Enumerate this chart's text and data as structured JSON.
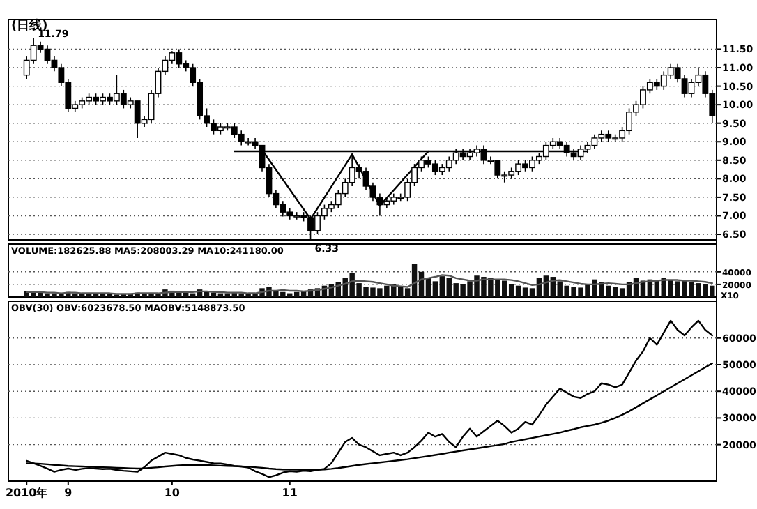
{
  "chart_data": [
    {
      "type": "candlestick",
      "title": "(日线)",
      "color": "#000000",
      "categories": [
        null,
        null,
        null,
        null,
        null,
        null,
        null,
        null,
        null,
        null,
        null,
        null,
        null,
        null,
        null,
        null,
        null,
        null,
        null,
        null,
        null,
        null,
        null,
        null,
        null,
        null,
        null,
        null,
        null,
        null,
        null,
        null,
        null,
        null,
        null,
        null,
        null,
        null,
        null,
        null,
        null,
        null,
        null,
        null,
        null,
        null,
        null,
        null,
        null,
        null,
        null,
        null,
        null,
        null,
        null,
        null,
        null,
        null,
        null,
        null,
        null,
        null,
        null,
        null,
        null,
        null,
        null,
        null,
        null,
        null,
        null,
        null,
        null,
        null,
        null,
        null,
        null,
        null,
        null,
        null,
        null,
        null,
        null,
        null,
        null,
        null,
        null,
        null,
        null,
        null,
        null,
        null,
        null,
        null,
        null,
        null,
        null,
        null,
        null,
        null
      ],
      "ohlc": [
        [
          10.8,
          11.3,
          10.7,
          11.2
        ],
        [
          11.2,
          11.79,
          11.1,
          11.6
        ],
        [
          11.6,
          11.7,
          11.4,
          11.5
        ],
        [
          11.5,
          11.6,
          11.1,
          11.2
        ],
        [
          11.2,
          11.3,
          10.9,
          11.0
        ],
        [
          11.0,
          11.1,
          10.5,
          10.6
        ],
        [
          10.6,
          10.7,
          9.8,
          9.9
        ],
        [
          9.9,
          10.1,
          9.8,
          10.0
        ],
        [
          10.0,
          10.2,
          9.9,
          10.1
        ],
        [
          10.1,
          10.3,
          10.0,
          10.2
        ],
        [
          10.2,
          10.3,
          10.0,
          10.1
        ],
        [
          10.1,
          10.3,
          10.0,
          10.2
        ],
        [
          10.2,
          10.3,
          10.0,
          10.1
        ],
        [
          10.1,
          10.8,
          10.0,
          10.3
        ],
        [
          10.3,
          10.4,
          9.9,
          10.0
        ],
        [
          10.0,
          10.2,
          9.9,
          10.1
        ],
        [
          10.1,
          10.1,
          9.1,
          9.5
        ],
        [
          9.5,
          9.7,
          9.4,
          9.6
        ],
        [
          9.6,
          10.4,
          9.5,
          10.3
        ],
        [
          10.3,
          11.0,
          10.2,
          10.9
        ],
        [
          10.9,
          11.3,
          10.8,
          11.2
        ],
        [
          11.2,
          11.45,
          11.1,
          11.4
        ],
        [
          11.4,
          11.5,
          11.0,
          11.1
        ],
        [
          11.1,
          11.2,
          10.9,
          11.0
        ],
        [
          11.0,
          11.1,
          10.5,
          10.6
        ],
        [
          10.6,
          10.7,
          9.6,
          9.7
        ],
        [
          9.7,
          9.9,
          9.4,
          9.5
        ],
        [
          9.5,
          9.6,
          9.2,
          9.3
        ],
        [
          9.3,
          9.5,
          9.2,
          9.4
        ],
        [
          9.4,
          9.5,
          9.3,
          9.4
        ],
        [
          9.4,
          9.5,
          9.1,
          9.2
        ],
        [
          9.2,
          9.3,
          8.9,
          9.0
        ],
        [
          9.0,
          9.1,
          8.9,
          9.0
        ],
        [
          9.0,
          9.1,
          8.8,
          8.9
        ],
        [
          8.9,
          8.9,
          8.2,
          8.3
        ],
        [
          8.3,
          8.4,
          7.5,
          7.6
        ],
        [
          7.6,
          7.7,
          7.2,
          7.3
        ],
        [
          7.3,
          7.4,
          6.98,
          7.1
        ],
        [
          7.1,
          7.2,
          6.9,
          7.0
        ],
        [
          7.0,
          7.1,
          6.9,
          7.0
        ],
        [
          7.0,
          7.1,
          6.85,
          6.95
        ],
        [
          6.95,
          7.0,
          6.33,
          6.6
        ],
        [
          6.6,
          7.1,
          6.5,
          7.0
        ],
        [
          7.0,
          7.3,
          6.9,
          7.2
        ],
        [
          7.2,
          7.4,
          7.1,
          7.3
        ],
        [
          7.3,
          7.7,
          7.2,
          7.6
        ],
        [
          7.6,
          8.0,
          7.5,
          7.9
        ],
        [
          7.9,
          8.68,
          7.8,
          8.3
        ],
        [
          8.3,
          8.4,
          8.0,
          8.2
        ],
        [
          8.2,
          8.3,
          7.7,
          7.8
        ],
        [
          7.8,
          7.9,
          7.4,
          7.5
        ],
        [
          7.5,
          7.6,
          7.0,
          7.3
        ],
        [
          7.3,
          7.5,
          7.2,
          7.4
        ],
        [
          7.4,
          7.6,
          7.3,
          7.5
        ],
        [
          7.5,
          7.6,
          7.4,
          7.5
        ],
        [
          7.5,
          8.0,
          7.4,
          7.9
        ],
        [
          7.9,
          8.4,
          7.8,
          8.3
        ],
        [
          8.3,
          8.6,
          8.2,
          8.5
        ],
        [
          8.5,
          8.6,
          8.3,
          8.4
        ],
        [
          8.4,
          8.5,
          8.1,
          8.2
        ],
        [
          8.2,
          8.4,
          8.1,
          8.3
        ],
        [
          8.3,
          8.6,
          8.2,
          8.5
        ],
        [
          8.5,
          8.8,
          8.4,
          8.7
        ],
        [
          8.7,
          8.8,
          8.5,
          8.6
        ],
        [
          8.6,
          8.8,
          8.5,
          8.7
        ],
        [
          8.7,
          8.9,
          8.6,
          8.8
        ],
        [
          8.8,
          8.9,
          8.4,
          8.5
        ],
        [
          8.5,
          8.6,
          8.4,
          8.5
        ],
        [
          8.5,
          8.5,
          8.0,
          8.1
        ],
        [
          8.1,
          8.2,
          7.9,
          8.1
        ],
        [
          8.1,
          8.3,
          8.0,
          8.2
        ],
        [
          8.2,
          8.5,
          8.1,
          8.4
        ],
        [
          8.4,
          8.5,
          8.2,
          8.3
        ],
        [
          8.3,
          8.6,
          8.2,
          8.5
        ],
        [
          8.5,
          8.7,
          8.4,
          8.6
        ],
        [
          8.6,
          9.0,
          8.5,
          8.9
        ],
        [
          8.9,
          9.1,
          8.8,
          9.0
        ],
        [
          9.0,
          9.1,
          8.8,
          8.9
        ],
        [
          8.9,
          9.0,
          8.6,
          8.7
        ],
        [
          8.7,
          8.8,
          8.5,
          8.6
        ],
        [
          8.6,
          8.9,
          8.5,
          8.8
        ],
        [
          8.8,
          9.0,
          8.7,
          8.9
        ],
        [
          8.9,
          9.2,
          8.8,
          9.1
        ],
        [
          9.1,
          9.3,
          9.0,
          9.2
        ],
        [
          9.2,
          9.3,
          9.0,
          9.1
        ],
        [
          9.1,
          9.2,
          9.0,
          9.1
        ],
        [
          9.1,
          9.4,
          9.0,
          9.3
        ],
        [
          9.3,
          9.9,
          9.2,
          9.8
        ],
        [
          9.8,
          10.1,
          9.7,
          10.0
        ],
        [
          10.0,
          10.5,
          9.9,
          10.4
        ],
        [
          10.4,
          10.7,
          10.3,
          10.6
        ],
        [
          10.6,
          10.7,
          10.4,
          10.5
        ],
        [
          10.5,
          10.9,
          10.4,
          10.8
        ],
        [
          10.8,
          11.1,
          10.7,
          11.0
        ],
        [
          11.0,
          11.1,
          10.6,
          10.7
        ],
        [
          10.7,
          10.8,
          10.2,
          10.3
        ],
        [
          10.3,
          10.7,
          10.2,
          10.6
        ],
        [
          10.6,
          11.0,
          10.5,
          10.8
        ],
        [
          10.8,
          10.9,
          10.2,
          10.3
        ],
        [
          10.3,
          10.4,
          9.5,
          9.7
        ]
      ],
      "series": [
        {
          "type": "line",
          "color": "#000000",
          "values": [
            null,
            null,
            null,
            null,
            null,
            null,
            null,
            null,
            null,
            null,
            null,
            null,
            null,
            null,
            null,
            null,
            null,
            null,
            null,
            null,
            null,
            null,
            null,
            null,
            null,
            null,
            null,
            null,
            null,
            null,
            null,
            null,
            null,
            null,
            8.78,
            null,
            null,
            null,
            null,
            null,
            null,
            6.91,
            null,
            null,
            null,
            null,
            null,
            8.66,
            null,
            null,
            null,
            7.27,
            null,
            null,
            null,
            null,
            null,
            null,
            8.74,
            null,
            null,
            null,
            null,
            null,
            null,
            null,
            null,
            null,
            null,
            null,
            null,
            null,
            null,
            null,
            null,
            null,
            null,
            null,
            null,
            null,
            null,
            null,
            null,
            null,
            null,
            null,
            null,
            null,
            null,
            null,
            null,
            null,
            null,
            null,
            null,
            null,
            null,
            null,
            null,
            null
          ]
        },
        {
          "type": "line",
          "color": "#000000",
          "values": [
            null,
            null,
            null,
            null,
            null,
            null,
            null,
            null,
            null,
            null,
            null,
            null,
            null,
            null,
            null,
            null,
            null,
            null,
            null,
            null,
            null,
            null,
            null,
            null,
            null,
            null,
            null,
            null,
            null,
            null,
            8.74,
            null,
            null,
            null,
            null,
            null,
            null,
            null,
            null,
            null,
            null,
            null,
            null,
            null,
            null,
            null,
            null,
            null,
            null,
            null,
            null,
            null,
            null,
            null,
            null,
            null,
            null,
            null,
            null,
            null,
            null,
            null,
            null,
            null,
            null,
            null,
            null,
            null,
            null,
            null,
            null,
            null,
            null,
            null,
            null,
            null,
            null,
            null,
            null,
            null,
            null,
            8.74,
            null,
            null,
            null,
            null,
            null,
            null,
            null,
            null,
            null,
            null,
            null,
            null,
            null,
            null,
            null,
            null,
            null,
            null
          ]
        }
      ],
      "ylim": [
        6.35,
        12.3
      ],
      "yticks": [
        {
          "value": 6.5,
          "label": "6.50"
        },
        {
          "value": 7,
          "label": "7.00"
        },
        {
          "value": 7.5,
          "label": "7.50"
        },
        {
          "value": 8,
          "label": "8.00"
        },
        {
          "value": 8.5,
          "label": "8.50"
        },
        {
          "value": 9,
          "label": "9.00"
        },
        {
          "value": 9.5,
          "label": "9.50"
        },
        {
          "value": 10,
          "label": "10.00"
        },
        {
          "value": 10.5,
          "label": "10.50"
        },
        {
          "value": 11,
          "label": "11.00"
        },
        {
          "value": 11.5,
          "label": "11.50"
        }
      ],
      "grid": "y",
      "tick_labels": "y",
      "annotations": [
        "11.79",
        "6.33"
      ]
    },
    {
      "type": "bar",
      "title": "VOLUME:182625.88 MA5:208003.29 MA10:241180.00",
      "categories": [
        null,
        null,
        null,
        null,
        null,
        null,
        null,
        null,
        null,
        null,
        null,
        null,
        null,
        null,
        null,
        null,
        null,
        null,
        null,
        null,
        null,
        null,
        null,
        null,
        null,
        null,
        null,
        null,
        null,
        null,
        null,
        null,
        null,
        null,
        null,
        null,
        null,
        null,
        null,
        null,
        null,
        null,
        null,
        null,
        null,
        null,
        null,
        null,
        null,
        null,
        null,
        null,
        null,
        null,
        null,
        null,
        null,
        null,
        null,
        null,
        null,
        null,
        null,
        null,
        null,
        null,
        null,
        null,
        null,
        null,
        null,
        null,
        null,
        null,
        null,
        null,
        null,
        null,
        null,
        null,
        null,
        null,
        null,
        null,
        null,
        null,
        null,
        null,
        null,
        null,
        null,
        null,
        null,
        null,
        null,
        null,
        null,
        null,
        null,
        null
      ],
      "series": [
        {
          "type": "bar",
          "color": "#111111",
          "values": [
            9000,
            8000,
            7000,
            6000,
            6000,
            5000,
            8000,
            6000,
            5000,
            5000,
            5000,
            5000,
            6000,
            4000,
            5000,
            5000,
            7000,
            5000,
            5000,
            6000,
            12000,
            10000,
            8000,
            7000,
            6000,
            12000,
            9000,
            7000,
            6000,
            6000,
            7000,
            6000,
            5000,
            6000,
            14000,
            16000,
            9000,
            8000,
            6000,
            8000,
            10000,
            12000,
            14000,
            18000,
            20000,
            24000,
            30000,
            38000,
            22000,
            16000,
            15000,
            14000,
            18000,
            20000,
            16000,
            14000,
            52000,
            40000,
            30000,
            25000,
            33000,
            30000,
            22000,
            20000,
            25000,
            34000,
            32000,
            30000,
            28000,
            26000,
            20000,
            18000,
            15000,
            14000,
            30000,
            34000,
            32000,
            25000,
            18000,
            16000,
            15000,
            20000,
            28000,
            24000,
            18000,
            16000,
            14000,
            24000,
            30000,
            26000,
            28000,
            26000,
            30000,
            27000,
            25000,
            26000,
            24000,
            22000,
            20000,
            18000
          ]
        },
        {
          "type": "line",
          "color": "#555555",
          "values": [
            8000,
            8000,
            8000,
            7000,
            7000,
            6000,
            7000,
            7000,
            6000,
            6000,
            6000,
            6000,
            6000,
            5000,
            5000,
            5000,
            6000,
            6000,
            6000,
            6000,
            7000,
            8000,
            8000,
            8000,
            8000,
            9000,
            9000,
            8000,
            8000,
            7000,
            7000,
            7000,
            6000,
            6000,
            8000,
            10000,
            10000,
            11000,
            10000,
            10000,
            9000,
            10000,
            11000,
            13000,
            15000,
            18000,
            21000,
            25000,
            26000,
            25000,
            24000,
            22000,
            20000,
            18000,
            17000,
            16000,
            22000,
            28000,
            30000,
            32000,
            35000,
            34000,
            30000,
            28000,
            26000,
            26000,
            28000,
            28000,
            28000,
            28000,
            27000,
            25000,
            22000,
            19000,
            20000,
            23000,
            26000,
            27000,
            25000,
            23000,
            21000,
            20000,
            20000,
            21000,
            22000,
            21000,
            20000,
            20000,
            22000,
            24000,
            25000,
            26000,
            27000,
            27000,
            27000,
            26000,
            26000,
            25000,
            24000,
            22000
          ]
        }
      ],
      "ylim": [
        0,
        84000
      ],
      "yticks": [
        20000,
        40000
      ],
      "grid": "y",
      "tick_labels": "y",
      "annotations": [
        "X10"
      ]
    },
    {
      "type": "line",
      "title": "OBV(30) OBV:6023678.50 MAOBV:5148873.50",
      "categories": [
        "2010年",
        null,
        null,
        null,
        null,
        null,
        "9",
        null,
        null,
        null,
        null,
        null,
        null,
        null,
        null,
        null,
        null,
        null,
        null,
        null,
        null,
        "10",
        null,
        null,
        null,
        null,
        null,
        null,
        null,
        null,
        null,
        null,
        null,
        null,
        null,
        null,
        null,
        null,
        "11",
        null,
        null,
        null,
        null,
        null,
        null,
        null,
        null,
        null,
        null,
        null,
        null,
        null,
        null,
        null,
        null,
        null,
        null,
        null,
        null,
        null,
        null,
        null,
        null,
        null,
        null,
        null,
        null,
        null,
        null,
        null,
        null,
        null,
        null,
        null,
        null,
        null,
        null,
        null,
        null,
        null,
        null,
        null,
        null,
        null,
        null,
        null,
        null,
        null,
        null,
        null,
        null,
        null,
        null,
        null,
        null,
        null,
        null,
        null,
        null,
        null
      ],
      "series": [
        {
          "color": "#000000",
          "values": [
            13900,
            13000,
            12000,
            11000,
            9800,
            10500,
            11000,
            10500,
            10900,
            11200,
            11000,
            10800,
            10900,
            10500,
            10200,
            10000,
            9800,
            11500,
            14000,
            15500,
            17000,
            16500,
            16000,
            15000,
            14400,
            14000,
            13500,
            13000,
            12900,
            12500,
            12000,
            11800,
            11400,
            10000,
            9000,
            7800,
            8500,
            9500,
            10000,
            9800,
            10200,
            10000,
            10500,
            10900,
            13000,
            17000,
            21000,
            22500,
            20000,
            19000,
            17500,
            16000,
            16500,
            17000,
            16000,
            17000,
            19000,
            21500,
            24500,
            23000,
            24000,
            21000,
            19000,
            23000,
            26000,
            23000,
            25000,
            27000,
            29000,
            27000,
            24500,
            26000,
            28500,
            27500,
            31000,
            35000,
            38000,
            41000,
            39500,
            38000,
            37500,
            39000,
            40000,
            43000,
            42500,
            41500,
            42500,
            47000,
            51500,
            55000,
            60000,
            57500,
            62000,
            66500,
            63000,
            61000,
            64000,
            66500,
            63000,
            61000
          ]
        },
        {
          "color": "#000000",
          "values": [
            13000,
            12900,
            12800,
            12600,
            12400,
            12200,
            12000,
            11900,
            11800,
            11700,
            11600,
            11500,
            11400,
            11300,
            11200,
            11100,
            11000,
            11100,
            11300,
            11500,
            11800,
            12000,
            12200,
            12300,
            12400,
            12400,
            12300,
            12200,
            12100,
            12000,
            11900,
            11800,
            11700,
            11500,
            11300,
            11000,
            10800,
            10700,
            10600,
            10600,
            10500,
            10500,
            10600,
            10700,
            10900,
            11200,
            11600,
            12000,
            12400,
            12700,
            13000,
            13300,
            13600,
            13900,
            14200,
            14500,
            14900,
            15300,
            15700,
            16100,
            16500,
            17000,
            17400,
            17800,
            18200,
            18600,
            19000,
            19400,
            19800,
            20200,
            21000,
            21500,
            22000,
            22500,
            23000,
            23500,
            24000,
            24500,
            25200,
            25800,
            26500,
            27000,
            27500,
            28200,
            29000,
            30000,
            31200,
            32500,
            34000,
            35500,
            37000,
            38500,
            40000,
            41500,
            43000,
            44500,
            46000,
            47500,
            49000,
            50500
          ]
        }
      ],
      "ylim": [
        6300,
        73800
      ],
      "yticks": [
        20000,
        30000,
        40000,
        50000,
        60000
      ],
      "grid": "y"
    }
  ]
}
